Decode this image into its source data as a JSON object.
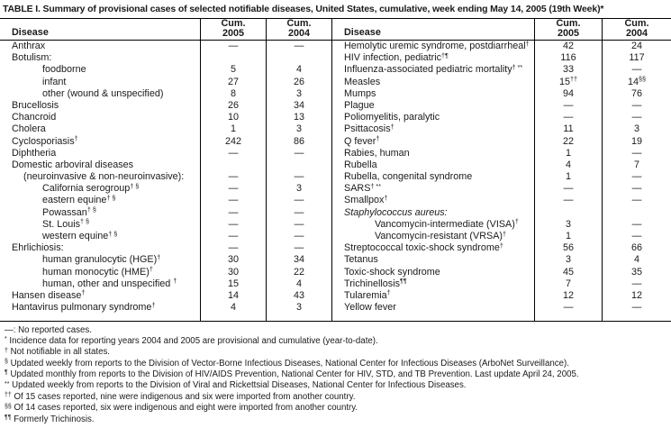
{
  "title": "TABLE I. Summary of provisional cases of selected notifiable diseases, United States, cumulative, week ending May 14, 2005 (19th Week)*",
  "columns": {
    "disease": "Disease",
    "cum": "Cum.",
    "y2005": "2005",
    "y2004": "2004"
  },
  "table": {
    "left_rows": [
      {
        "name": "Anthrax",
        "indent": 0,
        "c05": "—",
        "c04": "—"
      },
      {
        "name": "Botulism:",
        "indent": 0,
        "c05": "",
        "c04": ""
      },
      {
        "name": "foodborne",
        "indent": 2,
        "c05": "5",
        "c04": "4"
      },
      {
        "name": "infant",
        "indent": 2,
        "c05": "27",
        "c04": "26"
      },
      {
        "name": "other (wound & unspecified)",
        "indent": 2,
        "c05": "8",
        "c04": "3"
      },
      {
        "name": "Brucellosis",
        "indent": 0,
        "c05": "26",
        "c04": "34"
      },
      {
        "name": "Chancroid",
        "indent": 0,
        "c05": "10",
        "c04": "13"
      },
      {
        "name": "Cholera",
        "indent": 0,
        "c05": "1",
        "c04": "3"
      },
      {
        "name": "Cyclosporiasis",
        "sup": "†",
        "indent": 0,
        "c05": "242",
        "c04": "86"
      },
      {
        "name": "Diphtheria",
        "indent": 0,
        "c05": "—",
        "c04": "—"
      },
      {
        "name": "Domestic arboviral diseases",
        "indent": 0,
        "c05": "",
        "c04": ""
      },
      {
        "name": "(neuroinvasive & non-neuroinvasive):",
        "indent": 1,
        "c05": "—",
        "c04": "—"
      },
      {
        "name": "California serogroup",
        "sup": "† §",
        "indent": 2,
        "c05": "—",
        "c04": "3"
      },
      {
        "name": "eastern equine",
        "sup": "† §",
        "indent": 2,
        "c05": "—",
        "c04": "—"
      },
      {
        "name": "Powassan",
        "sup": "† §",
        "indent": 2,
        "c05": "—",
        "c04": "—"
      },
      {
        "name": "St. Louis",
        "sup": "† §",
        "indent": 2,
        "c05": "—",
        "c04": "—"
      },
      {
        "name": "western equine",
        "sup": "† §",
        "indent": 2,
        "c05": "—",
        "c04": "—"
      },
      {
        "name": "Ehrlichiosis:",
        "indent": 0,
        "c05": "—",
        "c04": "—"
      },
      {
        "name": "human granulocytic (HGE)",
        "sup": "†",
        "indent": 2,
        "c05": "30",
        "c04": "34"
      },
      {
        "name": "human monocytic (HME)",
        "sup": "†",
        "indent": 2,
        "c05": "30",
        "c04": "22"
      },
      {
        "name": "human, other and unspecified ",
        "sup": "†",
        "indent": 2,
        "c05": "15",
        "c04": "4"
      },
      {
        "name": "Hansen disease",
        "sup": "†",
        "indent": 0,
        "c05": "14",
        "c04": "43"
      },
      {
        "name": "Hantavirus pulmonary syndrome",
        "sup": "†",
        "indent": 0,
        "c05": "4",
        "c04": "3"
      }
    ],
    "right_rows": [
      {
        "name": "Hemolytic uremic syndrome, postdiarrheal",
        "sup": "†",
        "indent": 0,
        "c05": "42",
        "c04": "24"
      },
      {
        "name": "HIV infection, pediatric",
        "sup": "†¶",
        "indent": 0,
        "c05": "116",
        "c04": "117"
      },
      {
        "name": "Influenza-associated pediatric mortality",
        "sup": "† **",
        "indent": 0,
        "c05": "33",
        "c04": "—"
      },
      {
        "name": "Measles",
        "indent": 0,
        "c05": "15",
        "c05s": "††",
        "c04": "14",
        "c04s": "§§"
      },
      {
        "name": "Mumps",
        "indent": 0,
        "c05": "94",
        "c04": "76"
      },
      {
        "name": "Plague",
        "indent": 0,
        "c05": "—",
        "c04": "—"
      },
      {
        "name": "Poliomyelitis, paralytic",
        "indent": 0,
        "c05": "—",
        "c04": "—"
      },
      {
        "name": "Psittacosis",
        "sup": "†",
        "indent": 0,
        "c05": "11",
        "c04": "3"
      },
      {
        "name": "Q fever",
        "sup": "†",
        "indent": 0,
        "c05": "22",
        "c04": "19"
      },
      {
        "name": "Rabies, human",
        "indent": 0,
        "c05": "1",
        "c04": "—"
      },
      {
        "name": "Rubella",
        "indent": 0,
        "c05": "4",
        "c04": "7"
      },
      {
        "name": "Rubella, congenital syndrome",
        "indent": 0,
        "c05": "1",
        "c04": "—"
      },
      {
        "name": "SARS",
        "sup": "† **",
        "indent": 0,
        "c05": "—",
        "c04": "—"
      },
      {
        "name": "Smallpox",
        "sup": "†",
        "indent": 0,
        "c05": "—",
        "c04": "—"
      },
      {
        "name": "Staphylococcus aureus:",
        "italic": true,
        "indent": 0,
        "c05": "",
        "c04": ""
      },
      {
        "name": "Vancomycin-intermediate (VISA)",
        "sup": "†",
        "indent": 2,
        "c05": "3",
        "c04": "—"
      },
      {
        "name": "Vancomycin-resistant (VRSA)",
        "sup": "†",
        "indent": 2,
        "c05": "1",
        "c04": "—"
      },
      {
        "name": "Streptococcal toxic-shock syndrome",
        "sup": "†",
        "indent": 0,
        "c05": "56",
        "c04": "66"
      },
      {
        "name": "Tetanus",
        "indent": 0,
        "c05": "3",
        "c04": "4"
      },
      {
        "name": "Toxic-shock syndrome",
        "indent": 0,
        "c05": "45",
        "c04": "35"
      },
      {
        "name": "Trichinellosis",
        "sup": "¶¶",
        "indent": 0,
        "c05": "7",
        "c04": "—"
      },
      {
        "name": "Tularemia",
        "sup": "†",
        "indent": 0,
        "c05": "12",
        "c04": "12"
      },
      {
        "name": "Yellow fever",
        "indent": 0,
        "c05": "—",
        "c04": "—"
      }
    ]
  },
  "footnotes": [
    {
      "marker": "—:",
      "baseline": true,
      "text": "No reported cases."
    },
    {
      "marker": "*",
      "text": "Incidence data for reporting years 2004 and 2005 are provisional and cumulative (year-to-date)."
    },
    {
      "marker": "†",
      "text": "Not notifiable in all states."
    },
    {
      "marker": "§",
      "text": "Updated weekly from reports to the Division of Vector-Borne Infectious Diseases, National Center for Infectious Diseases (ArboNet Surveillance)."
    },
    {
      "marker": "¶",
      "text": "Updated monthly from reports to the Division of HIV/AIDS Prevention, National Center for HIV, STD, and TB Prevention. Last update April 24, 2005."
    },
    {
      "marker": "**",
      "text": "Updated weekly from reports to the Division of Viral and Rickettsial Diseases, National Center for Infectious Diseases."
    },
    {
      "marker": "††",
      "text": "Of 15 cases reported, nine were indigenous and six were imported from another country."
    },
    {
      "marker": "§§",
      "text": "Of 14 cases reported, six were indigenous and eight were imported from another country."
    },
    {
      "marker": "¶¶",
      "text": "Formerly Trichinosis."
    }
  ]
}
